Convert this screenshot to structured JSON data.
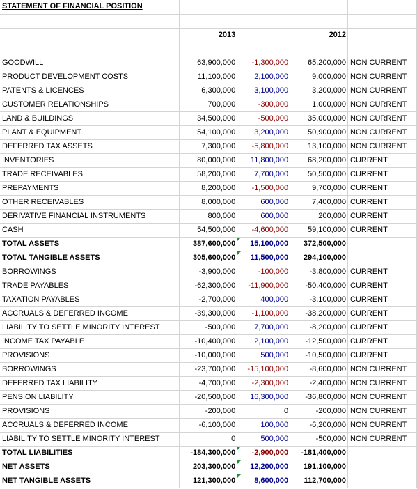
{
  "title": "STATEMENT OF FINANCIAL POSITION",
  "years": [
    "2013",
    "2012"
  ],
  "colors": {
    "decrease": "#8b0000",
    "increase": "#00008b",
    "flag": "#1e8e3e"
  },
  "rows": [
    {
      "label": "GOODWILL",
      "v2013": "63,900,000",
      "change": "-1,300,000",
      "dir": "neg",
      "v2012": "65,200,000",
      "cls": "NON CURRENT",
      "bold": false
    },
    {
      "label": "PRODUCT DEVELOPMENT COSTS",
      "v2013": "11,100,000",
      "change": "2,100,000",
      "dir": "pos",
      "v2012": "9,000,000",
      "cls": "NON CURRENT",
      "bold": false
    },
    {
      "label": "PATENTS & LICENCES",
      "v2013": "6,300,000",
      "change": "3,100,000",
      "dir": "pos",
      "v2012": "3,200,000",
      "cls": "NON CURRENT",
      "bold": false
    },
    {
      "label": "CUSTOMER RELATIONSHIPS",
      "v2013": "700,000",
      "change": "-300,000",
      "dir": "neg",
      "v2012": "1,000,000",
      "cls": "NON CURRENT",
      "bold": false
    },
    {
      "label": "LAND & BUILDINGS",
      "v2013": "34,500,000",
      "change": "-500,000",
      "dir": "neg",
      "v2012": "35,000,000",
      "cls": "NON CURRENT",
      "bold": false
    },
    {
      "label": "PLANT & EQUIPMENT",
      "v2013": "54,100,000",
      "change": "3,200,000",
      "dir": "pos",
      "v2012": "50,900,000",
      "cls": "NON CURRENT",
      "bold": false
    },
    {
      "label": "DEFERRED TAX ASSETS",
      "v2013": "7,300,000",
      "change": "-5,800,000",
      "dir": "neg",
      "v2012": "13,100,000",
      "cls": "NON CURRENT",
      "bold": false
    },
    {
      "label": "INVENTORIES",
      "v2013": "80,000,000",
      "change": "11,800,000",
      "dir": "pos",
      "v2012": "68,200,000",
      "cls": "CURRENT",
      "bold": false
    },
    {
      "label": "TRADE RECEIVABLES",
      "v2013": "58,200,000",
      "change": "7,700,000",
      "dir": "pos",
      "v2012": "50,500,000",
      "cls": "CURRENT",
      "bold": false
    },
    {
      "label": "PREPAYMENTS",
      "v2013": "8,200,000",
      "change": "-1,500,000",
      "dir": "neg",
      "v2012": "9,700,000",
      "cls": "CURRENT",
      "bold": false
    },
    {
      "label": "OTHER RECEIVABLES",
      "v2013": "8,000,000",
      "change": "600,000",
      "dir": "pos",
      "v2012": "7,400,000",
      "cls": "CURRENT",
      "bold": false
    },
    {
      "label": "DERIVATIVE FINANCIAL INSTRUMENTS",
      "v2013": "800,000",
      "change": "600,000",
      "dir": "pos",
      "v2012": "200,000",
      "cls": "CURRENT",
      "bold": false
    },
    {
      "label": "CASH",
      "v2013": "54,500,000",
      "change": "-4,600,000",
      "dir": "neg",
      "v2012": "59,100,000",
      "cls": "CURRENT",
      "bold": false
    },
    {
      "label": "TOTAL ASSETS",
      "v2013": "387,600,000",
      "change": "15,100,000",
      "dir": "pos",
      "v2012": "372,500,000",
      "cls": "",
      "bold": true,
      "flag": true
    },
    {
      "label": "TOTAL TANGIBLE ASSETS",
      "v2013": "305,600,000",
      "change": "11,500,000",
      "dir": "pos",
      "v2012": "294,100,000",
      "cls": "",
      "bold": true,
      "flag": true
    },
    {
      "label": "BORROWINGS",
      "v2013": "-3,900,000",
      "change": "-100,000",
      "dir": "neg",
      "v2012": "-3,800,000",
      "cls": "CURRENT",
      "bold": false
    },
    {
      "label": "TRADE PAYABLES",
      "v2013": "-62,300,000",
      "change": "-11,900,000",
      "dir": "neg",
      "v2012": "-50,400,000",
      "cls": "CURRENT",
      "bold": false
    },
    {
      "label": "TAXATION PAYABLES",
      "v2013": "-2,700,000",
      "change": "400,000",
      "dir": "pos",
      "v2012": "-3,100,000",
      "cls": "CURRENT",
      "bold": false
    },
    {
      "label": "ACCRUALS & DEFERRED INCOME",
      "v2013": "-39,300,000",
      "change": "-1,100,000",
      "dir": "neg",
      "v2012": "-38,200,000",
      "cls": "CURRENT",
      "bold": false
    },
    {
      "label": "LIABILITY TO SETTLE MINORITY INTEREST",
      "v2013": "-500,000",
      "change": "7,700,000",
      "dir": "pos",
      "v2012": "-8,200,000",
      "cls": "CURRENT",
      "bold": false
    },
    {
      "label": "INCOME TAX PAYABLE",
      "v2013": "-10,400,000",
      "change": "2,100,000",
      "dir": "pos",
      "v2012": "-12,500,000",
      "cls": "CURRENT",
      "bold": false
    },
    {
      "label": "PROVISIONS",
      "v2013": "-10,000,000",
      "change": "500,000",
      "dir": "pos",
      "v2012": "-10,500,000",
      "cls": "CURRENT",
      "bold": false
    },
    {
      "label": "BORROWINGS",
      "v2013": "-23,700,000",
      "change": "-15,100,000",
      "dir": "neg",
      "v2012": "-8,600,000",
      "cls": "NON CURRENT",
      "bold": false
    },
    {
      "label": "DEFERRED TAX LIABILITY",
      "v2013": "-4,700,000",
      "change": "-2,300,000",
      "dir": "neg",
      "v2012": "-2,400,000",
      "cls": "NON CURRENT",
      "bold": false
    },
    {
      "label": "PENSION LIABILITY",
      "v2013": "-20,500,000",
      "change": "16,300,000",
      "dir": "pos",
      "v2012": "-36,800,000",
      "cls": "NON CURRENT",
      "bold": false
    },
    {
      "label": "PROVISIONS",
      "v2013": "-200,000",
      "change": "0",
      "dir": "zero",
      "v2012": "-200,000",
      "cls": "NON CURRENT",
      "bold": false
    },
    {
      "label": "ACCRUALS & DEFERRED INCOME",
      "v2013": "-6,100,000",
      "change": "100,000",
      "dir": "pos",
      "v2012": "-6,200,000",
      "cls": "NON CURRENT",
      "bold": false
    },
    {
      "label": "LIABILITY TO SETTLE MINORITY INTEREST",
      "v2013": "0",
      "change": "500,000",
      "dir": "pos",
      "v2012": "-500,000",
      "cls": "NON CURRENT",
      "bold": false
    },
    {
      "label": "TOTAL LIABILITIES",
      "v2013": "-184,300,000",
      "change": "-2,900,000",
      "dir": "neg",
      "v2012": "-181,400,000",
      "cls": "",
      "bold": true,
      "flag": true
    },
    {
      "label": "NET ASSETS",
      "v2013": "203,300,000",
      "change": "12,200,000",
      "dir": "pos",
      "v2012": "191,100,000",
      "cls": "",
      "bold": true,
      "flag": true
    },
    {
      "label": "NET TANGIBLE ASSETS",
      "v2013": "121,300,000",
      "change": "8,600,000",
      "dir": "pos",
      "v2012": "112,700,000",
      "cls": "",
      "bold": true,
      "flag": true
    }
  ]
}
